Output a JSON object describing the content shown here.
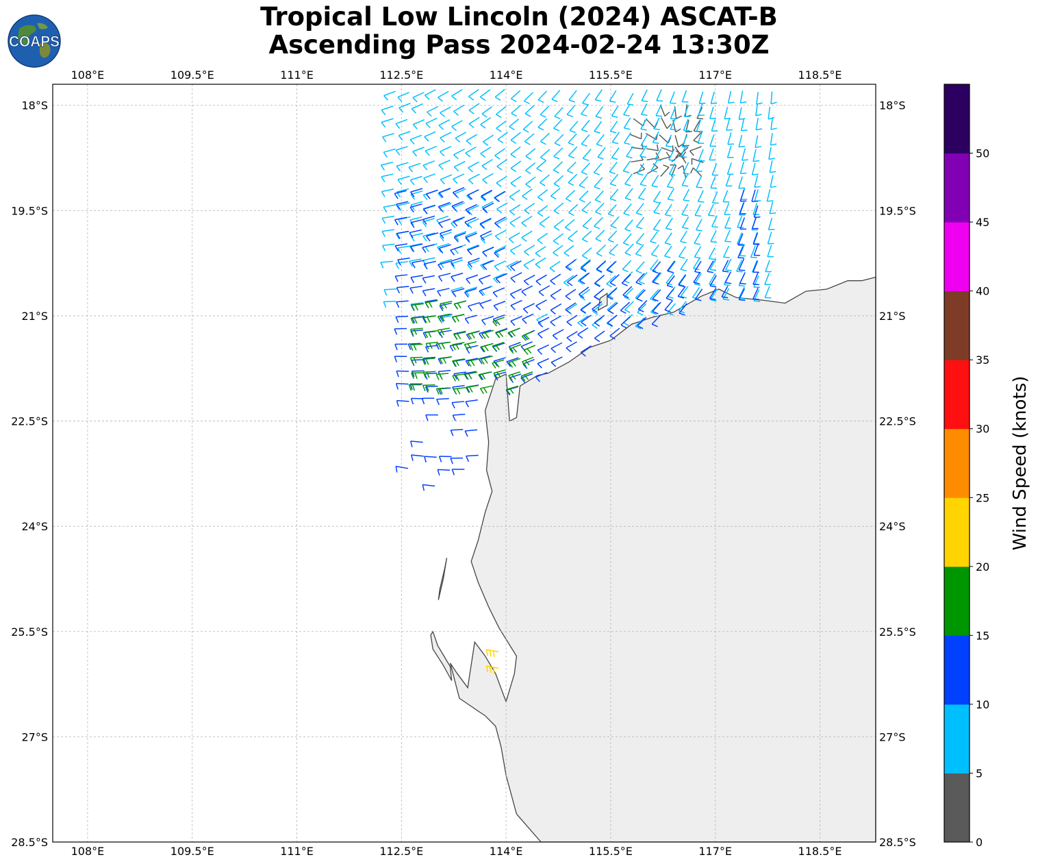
{
  "title": {
    "line1": "Tropical Low Lincoln (2024) ASCAT-B",
    "line2": "Ascending Pass 2024-02-24 13:30Z"
  },
  "logo": {
    "text": "COAPS",
    "icon": "globe-icon"
  },
  "map": {
    "lon_range": [
      107.5,
      119.3
    ],
    "lat_range": [
      -28.5,
      -17.7
    ],
    "lon_ticks": [
      "108°E",
      "109.5°E",
      "111°E",
      "112.5°E",
      "114°E",
      "115.5°E",
      "117°E",
      "118.5°E"
    ],
    "lat_ticks": [
      "18°S",
      "19.5°S",
      "21°S",
      "22.5°S",
      "24°S",
      "25.5°S",
      "27°S",
      "28.5°S"
    ],
    "gridlines": true,
    "land_color": "#eeeeee",
    "coast_color": "#444444"
  },
  "colorbar": {
    "label": "Wind Speed (knots)",
    "tick_labels": [
      "0",
      "5",
      "10",
      "15",
      "20",
      "25",
      "30",
      "35",
      "40",
      "45",
      "50"
    ],
    "colors": [
      "#5a5a5a",
      "#00bfff",
      "#0040ff",
      "#009600",
      "#ffd400",
      "#ff8c00",
      "#ff1010",
      "#7e3c26",
      "#f000f0",
      "#8200b4",
      "#2c0060"
    ]
  },
  "chart_data": {
    "type": "wind-barbs",
    "units": "knots",
    "regions": [
      {
        "speed_band": "0-5",
        "color": "#5a5a5a",
        "lon": [
          115.2,
          117.0
        ],
        "lat": [
          -18.0,
          -19.1
        ]
      },
      {
        "speed_band": "5-10",
        "color": "#00bfff",
        "lon": [
          112.4,
          117.9
        ],
        "lat": [
          -17.8,
          -21.0
        ]
      },
      {
        "speed_band": "10-15",
        "color": "#0040ff",
        "lon": [
          112.6,
          117.8
        ],
        "lat": [
          -19.2,
          -23.6
        ]
      },
      {
        "speed_band": "15-20",
        "color": "#009600",
        "lon": [
          112.8,
          114.5
        ],
        "lat": [
          -20.8,
          -22.1
        ]
      },
      {
        "speed_band": "20-30",
        "color": "#ffd400",
        "lon": [
          113.9,
          114.1
        ],
        "lat": [
          -25.8,
          -26.2
        ]
      }
    ]
  }
}
